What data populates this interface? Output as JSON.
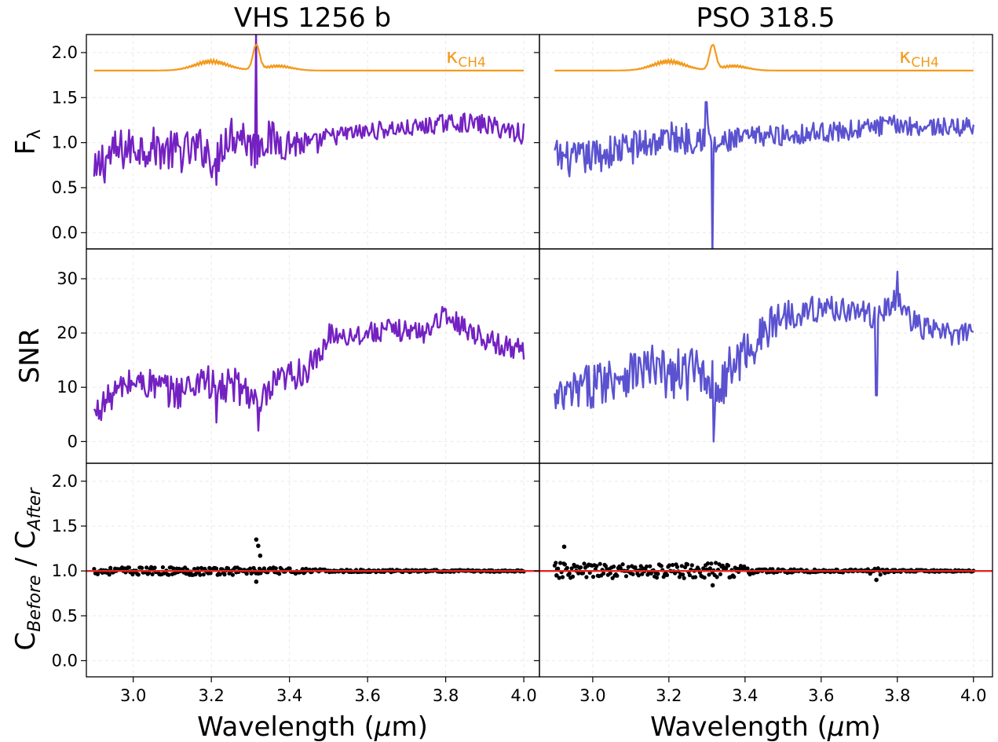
{
  "colors": {
    "vhs_series": "#7421c2",
    "pso_series": "#5b52d0",
    "kappa_line": "#f39a1e",
    "ratio_points": "#000000",
    "reference_line": "#e8231f",
    "grid": "#e9e9e9"
  },
  "chart_data": [
    {
      "type": "line",
      "panel": "vhs-flux",
      "title": "VHS 1256 b",
      "ylabel": "F",
      "ylabel_sub": "λ",
      "annotation": {
        "main": "κ",
        "sub": "CH4"
      },
      "xlim": [
        2.88,
        4.04
      ],
      "ylim": [
        -0.18,
        2.2
      ],
      "yticks": [
        "0.0",
        "0.5",
        "1.0",
        "1.5",
        "2.0"
      ],
      "ytick_values": [
        0.0,
        0.5,
        1.0,
        1.5,
        2.0
      ],
      "grid": true,
      "series": [
        {
          "role": "flux",
          "x_range": [
            2.9,
            4.0
          ],
          "points": 370,
          "envelope": [
            [
              2.9,
              0.55
            ],
            [
              2.92,
              0.8
            ],
            [
              2.96,
              0.9
            ],
            [
              3.0,
              0.95
            ],
            [
              3.05,
              0.95
            ],
            [
              3.1,
              0.9
            ],
            [
              3.15,
              0.9
            ],
            [
              3.18,
              0.95
            ],
            [
              3.21,
              0.8
            ],
            [
              3.24,
              1.1
            ],
            [
              3.28,
              1.1
            ],
            [
              3.31,
              0.9
            ],
            [
              3.33,
              1.05
            ],
            [
              3.38,
              1.0
            ],
            [
              3.42,
              1.0
            ],
            [
              3.46,
              0.95
            ],
            [
              3.49,
              1.05
            ],
            [
              3.55,
              1.1
            ],
            [
              3.6,
              1.12
            ],
            [
              3.65,
              1.15
            ],
            [
              3.7,
              1.15
            ],
            [
              3.75,
              1.18
            ],
            [
              3.8,
              1.22
            ],
            [
              3.85,
              1.22
            ],
            [
              3.9,
              1.2
            ],
            [
              3.95,
              1.15
            ],
            [
              4.0,
              1.1
            ]
          ],
          "noise": [
            [
              2.9,
              0.3
            ],
            [
              3.0,
              0.22
            ],
            [
              3.3,
              0.25
            ],
            [
              3.45,
              0.16
            ],
            [
              3.5,
              0.1
            ],
            [
              3.8,
              0.1
            ],
            [
              4.0,
              0.12
            ]
          ]
        },
        {
          "role": "kappa_ch4",
          "x_range": [
            2.9,
            4.0
          ],
          "baseline": 1.8,
          "bumps": [
            {
              "center": 3.2,
              "width": 0.06,
              "height": 0.1,
              "ripple": 0.02
            },
            {
              "center": 3.315,
              "width": 0.012,
              "height": 0.27
            },
            {
              "center": 3.37,
              "width": 0.05,
              "height": 0.05,
              "ripple": 0.012
            }
          ]
        }
      ],
      "spikes": [
        {
          "x": 3.315,
          "y": 2.25
        },
        {
          "x": 3.212,
          "y": 0.53
        }
      ]
    },
    {
      "type": "line",
      "panel": "pso-flux",
      "title": "PSO 318.5",
      "annotation": {
        "main": "κ",
        "sub": "CH4"
      },
      "xlim": [
        2.86,
        4.05
      ],
      "ylim": [
        -0.18,
        2.2
      ],
      "grid": true,
      "series": [
        {
          "role": "flux",
          "x_range": [
            2.9,
            4.0
          ],
          "points": 370,
          "envelope": [
            [
              2.9,
              0.85
            ],
            [
              2.95,
              0.8
            ],
            [
              3.0,
              0.85
            ],
            [
              3.05,
              0.9
            ],
            [
              3.1,
              0.95
            ],
            [
              3.15,
              1.0
            ],
            [
              3.2,
              1.05
            ],
            [
              3.25,
              1.05
            ],
            [
              3.3,
              1.1
            ],
            [
              3.32,
              0.95
            ],
            [
              3.35,
              1.0
            ],
            [
              3.4,
              1.05
            ],
            [
              3.45,
              1.08
            ],
            [
              3.5,
              1.08
            ],
            [
              3.55,
              1.1
            ],
            [
              3.6,
              1.12
            ],
            [
              3.65,
              1.12
            ],
            [
              3.7,
              1.15
            ],
            [
              3.75,
              1.18
            ],
            [
              3.8,
              1.2
            ],
            [
              3.85,
              1.18
            ],
            [
              3.9,
              1.18
            ],
            [
              3.95,
              1.16
            ],
            [
              4.0,
              1.2
            ]
          ],
          "noise": [
            [
              2.9,
              0.2
            ],
            [
              3.3,
              0.18
            ],
            [
              3.4,
              0.12
            ],
            [
              4.0,
              0.1
            ]
          ]
        },
        {
          "role": "kappa_ch4",
          "x_range": [
            2.9,
            4.0
          ],
          "baseline": 1.8,
          "bumps": [
            {
              "center": 3.2,
              "width": 0.06,
              "height": 0.1,
              "ripple": 0.02
            },
            {
              "center": 3.315,
              "width": 0.012,
              "height": 0.27
            },
            {
              "center": 3.37,
              "width": 0.05,
              "height": 0.05,
              "ripple": 0.012
            }
          ]
        }
      ],
      "spikes": [
        {
          "x": 3.315,
          "y": -0.3
        },
        {
          "x": 3.298,
          "y": 1.45
        }
      ]
    },
    {
      "type": "line",
      "panel": "vhs-snr",
      "ylabel": "SNR",
      "xlim": [
        2.88,
        4.04
      ],
      "ylim": [
        -4,
        35.5
      ],
      "yticks": [
        "0",
        "10",
        "20",
        "30"
      ],
      "ytick_values": [
        0,
        10,
        20,
        30
      ],
      "grid": true,
      "series": [
        {
          "role": "snr",
          "x_range": [
            2.9,
            4.0
          ],
          "points": 370,
          "envelope": [
            [
              2.9,
              5.0
            ],
            [
              2.93,
              7.5
            ],
            [
              2.97,
              10.0
            ],
            [
              3.0,
              11.0
            ],
            [
              3.05,
              10.5
            ],
            [
              3.1,
              9.0
            ],
            [
              3.15,
              10.0
            ],
            [
              3.18,
              12.5
            ],
            [
              3.21,
              9.0
            ],
            [
              3.25,
              10.5
            ],
            [
              3.3,
              9.0
            ],
            [
              3.32,
              6.0
            ],
            [
              3.36,
              10.0
            ],
            [
              3.4,
              12.0
            ],
            [
              3.45,
              13.5
            ],
            [
              3.48,
              15.5
            ],
            [
              3.5,
              20.0
            ],
            [
              3.55,
              19.5
            ],
            [
              3.6,
              20.0
            ],
            [
              3.65,
              20.5
            ],
            [
              3.7,
              20.5
            ],
            [
              3.75,
              20.0
            ],
            [
              3.78,
              23.0
            ],
            [
              3.82,
              22.5
            ],
            [
              3.85,
              21.0
            ],
            [
              3.9,
              19.0
            ],
            [
              3.95,
              17.5
            ],
            [
              4.0,
              17.0
            ]
          ],
          "noise": [
            [
              2.9,
              2.5
            ],
            [
              3.2,
              3.5
            ],
            [
              3.45,
              3.0
            ],
            [
              3.5,
              2.0
            ],
            [
              4.0,
              2.0
            ]
          ]
        }
      ],
      "spikes": [
        {
          "x": 3.32,
          "y": 2.0
        },
        {
          "x": 3.213,
          "y": 3.5
        }
      ]
    },
    {
      "type": "line",
      "panel": "pso-snr",
      "xlim": [
        2.86,
        4.05
      ],
      "ylim": [
        -4,
        35.5
      ],
      "grid": true,
      "series": [
        {
          "role": "snr",
          "x_range": [
            2.9,
            4.0
          ],
          "points": 370,
          "envelope": [
            [
              2.9,
              7.0
            ],
            [
              2.95,
              9.0
            ],
            [
              3.0,
              10.5
            ],
            [
              3.05,
              12.0
            ],
            [
              3.1,
              13.0
            ],
            [
              3.15,
              13.5
            ],
            [
              3.2,
              12.0
            ],
            [
              3.25,
              12.5
            ],
            [
              3.3,
              13.5
            ],
            [
              3.32,
              9.0
            ],
            [
              3.36,
              13.0
            ],
            [
              3.4,
              16.5
            ],
            [
              3.45,
              20.0
            ],
            [
              3.5,
              23.5
            ],
            [
              3.55,
              24.0
            ],
            [
              3.6,
              24.5
            ],
            [
              3.65,
              24.5
            ],
            [
              3.7,
              24.0
            ],
            [
              3.73,
              23.0
            ],
            [
              3.76,
              24.0
            ],
            [
              3.8,
              26.0
            ],
            [
              3.83,
              23.0
            ],
            [
              3.86,
              21.0
            ],
            [
              3.9,
              20.5
            ],
            [
              3.95,
              19.5
            ],
            [
              4.0,
              20.0
            ]
          ],
          "noise": [
            [
              2.9,
              4.0
            ],
            [
              3.3,
              5.0
            ],
            [
              3.45,
              4.0
            ],
            [
              3.55,
              2.5
            ],
            [
              4.0,
              2.0
            ]
          ]
        }
      ],
      "spikes": [
        {
          "x": 3.317,
          "y": 0.0
        },
        {
          "x": 3.745,
          "y": 8.5
        },
        {
          "x": 3.8,
          "y": 31.3
        }
      ]
    },
    {
      "type": "scatter",
      "panel": "vhs-ratio",
      "ylabel": "C",
      "ylabel_sub1": "Before",
      "ylabel_mid": " / C",
      "ylabel_sub2": "After",
      "xlim": [
        2.88,
        4.04
      ],
      "ylim": [
        -0.18,
        2.2
      ],
      "yticks": [
        "0.0",
        "0.5",
        "1.0",
        "1.5",
        "2.0"
      ],
      "ytick_values": [
        0.0,
        0.5,
        1.0,
        1.5,
        2.0
      ],
      "xticks": [
        "3.0",
        "3.2",
        "3.4",
        "3.6",
        "3.8",
        "4.0"
      ],
      "xtick_values": [
        3.0,
        3.2,
        3.4,
        3.6,
        3.8,
        4.0
      ],
      "xlabel": "Wavelength (",
      "xlabel_greek": "μ",
      "xlabel_end": "m)",
      "reference_y": 1.0,
      "grid": true,
      "series": [
        {
          "role": "ratio",
          "x_range": [
            2.9,
            4.0
          ],
          "points": 370,
          "center": 1.0,
          "spread": [
            [
              2.9,
              0.025
            ],
            [
              3.2,
              0.03
            ],
            [
              3.35,
              0.025
            ],
            [
              3.5,
              0.01
            ],
            [
              4.0,
              0.005
            ]
          ]
        }
      ],
      "outliers": [
        {
          "x": 3.315,
          "y": 1.35
        },
        {
          "x": 3.32,
          "y": 1.28
        },
        {
          "x": 3.315,
          "y": 0.88
        },
        {
          "x": 3.325,
          "y": 1.17
        }
      ]
    },
    {
      "type": "scatter",
      "panel": "pso-ratio",
      "xlim": [
        2.86,
        4.05
      ],
      "ylim": [
        -0.18,
        2.2
      ],
      "xticks": [
        "3.0",
        "3.2",
        "3.4",
        "3.6",
        "3.8",
        "4.0"
      ],
      "xtick_values": [
        3.0,
        3.2,
        3.4,
        3.6,
        3.8,
        4.0
      ],
      "xlabel": "Wavelength (",
      "xlabel_greek": "μ",
      "xlabel_end": "m)",
      "reference_y": 1.0,
      "grid": true,
      "series": [
        {
          "role": "ratio",
          "x_range": [
            2.9,
            4.0
          ],
          "points": 370,
          "center": 1.0,
          "spread": [
            [
              2.9,
              0.06
            ],
            [
              3.0,
              0.05
            ],
            [
              3.2,
              0.05
            ],
            [
              3.32,
              0.06
            ],
            [
              3.45,
              0.015
            ],
            [
              3.7,
              0.01
            ],
            [
              3.75,
              0.03
            ],
            [
              3.78,
              0.008
            ],
            [
              4.0,
              0.005
            ]
          ]
        }
      ],
      "outliers": [
        {
          "x": 2.925,
          "y": 1.27
        },
        {
          "x": 3.315,
          "y": 0.84
        },
        {
          "x": 3.745,
          "y": 0.9
        },
        {
          "x": 2.905,
          "y": 0.95
        }
      ]
    }
  ]
}
